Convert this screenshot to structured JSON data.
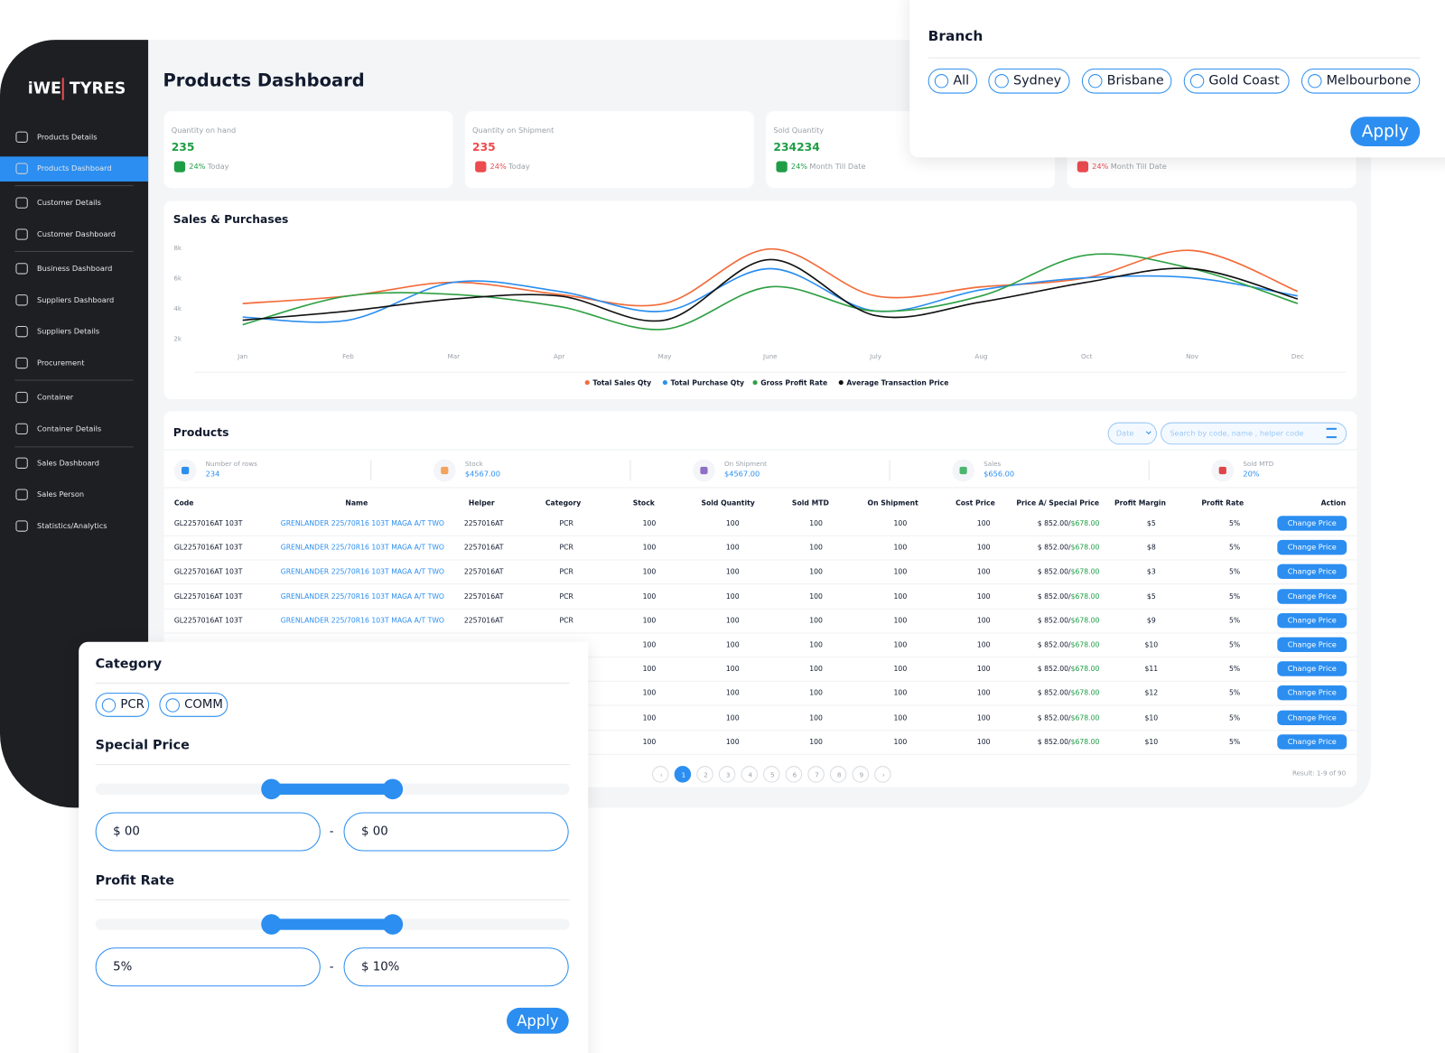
{
  "sidebar": {
    "logo_left": "iWE",
    "logo_right": "TYRES",
    "nav": [
      "Products Details",
      "Products Dashboard",
      "Customer Details",
      "Customer Dashboard",
      "Business Dashboard",
      "Suppliers Dashboard",
      "Suppliers Details",
      "Procurement",
      "Container",
      "Container Details",
      "Sales Dashboard",
      "Sales Person",
      "Statistics/Analytics"
    ]
  },
  "header": {
    "title": "Products Dashboard"
  },
  "cards": [
    {
      "label": "Quantity on hand",
      "value": "235",
      "change": "24%",
      "period": "Today",
      "color": "#1f9d45"
    },
    {
      "label": "Quantity on Shipment",
      "value": "235",
      "change": "24%",
      "period": "Today",
      "color": "#ec4b4f"
    },
    {
      "label": "Sold Quantity",
      "value": "234234",
      "change": "24%",
      "period": "Month Till Date",
      "color": "#1f9d45"
    },
    {
      "change": "24%",
      "period": "Month Till Date",
      "color": "#ec4b4f"
    }
  ],
  "chart_data": {
    "type": "line",
    "title": "Sales & Purchases",
    "categories": [
      "Jan",
      "Feb",
      "Mar",
      "Apr",
      "May",
      "June",
      "July",
      "Aug",
      "Oct",
      "Nov",
      "Dec"
    ],
    "ylim": [
      0,
      8500
    ],
    "yticks": [
      {
        "value": 2000,
        "label": "2k"
      },
      {
        "value": 4000,
        "label": "4k"
      },
      {
        "value": 6000,
        "label": "6k"
      },
      {
        "value": 8000,
        "label": "8k"
      }
    ],
    "series": [
      {
        "name": "Total Sales Qty",
        "color": "#f26b3a",
        "values": [
          4300,
          4800,
          5700,
          4900,
          4300,
          7900,
          4800,
          5400,
          6000,
          7800,
          5100
        ]
      },
      {
        "name": "Total Purchase Qty",
        "color": "#2b8ef0",
        "values": [
          3400,
          3200,
          5700,
          5100,
          3800,
          6600,
          3800,
          5200,
          6000,
          6000,
          4800
        ]
      },
      {
        "name": "Gross Profit Rate",
        "color": "#2ea043",
        "values": [
          2900,
          4800,
          4900,
          4100,
          2600,
          5400,
          3800,
          4800,
          7500,
          6600,
          4300
        ]
      },
      {
        "name": "Average Transaction Price",
        "color": "#111111",
        "values": [
          3200,
          3800,
          4600,
          4800,
          3200,
          7200,
          3500,
          4400,
          5700,
          6600,
          4600
        ]
      }
    ]
  },
  "products": {
    "title": "Products",
    "date_filter": "Date",
    "search_placeholder": "Search by code, name , helper code",
    "summary": [
      {
        "label": "Number of rows",
        "value": "234"
      },
      {
        "label": "Stock",
        "value": "$4567.00"
      },
      {
        "label": "On Shipment",
        "value": "$4567.00"
      },
      {
        "label": "Sales",
        "value": "$656.00"
      },
      {
        "label": "Sold MTD",
        "value": "20%"
      }
    ],
    "columns": [
      "Code",
      "Name",
      "Helper",
      "Category",
      "Stock",
      "Sold Quantity",
      "Sold MTD",
      "On Shipment",
      "Cost Price",
      "Price A/ Special Price",
      "Profit Margin",
      "Profit Rate",
      "Action"
    ],
    "rows": [
      {
        "code": "GL2257016AT 103T",
        "name": "GRENLANDER 225/70R16 103T MAGA A/T TWO",
        "helper": "2257016AT",
        "category": "PCR",
        "stock": "100",
        "sold_qty": "100",
        "sold_mtd": "100",
        "on_shipment": "100",
        "cost": "100",
        "price_a": "$ 852.00/",
        "special_price": "$678.00",
        "margin": "$5",
        "rate": "5%"
      },
      {
        "code": "GL2257016AT 103T",
        "name": "GRENLANDER 225/70R16 103T MAGA A/T TWO",
        "helper": "2257016AT",
        "category": "PCR",
        "stock": "100",
        "sold_qty": "100",
        "sold_mtd": "100",
        "on_shipment": "100",
        "cost": "100",
        "price_a": "$ 852.00/",
        "special_price": "$678.00",
        "margin": "$8",
        "rate": "5%"
      },
      {
        "code": "GL2257016AT 103T",
        "name": "GRENLANDER 225/70R16 103T MAGA A/T TWO",
        "helper": "2257016AT",
        "category": "PCR",
        "stock": "100",
        "sold_qty": "100",
        "sold_mtd": "100",
        "on_shipment": "100",
        "cost": "100",
        "price_a": "$ 852.00/",
        "special_price": "$678.00",
        "margin": "$3",
        "rate": "5%"
      },
      {
        "code": "GL2257016AT 103T",
        "name": "GRENLANDER 225/70R16 103T MAGA A/T TWO",
        "helper": "2257016AT",
        "category": "PCR",
        "stock": "100",
        "sold_qty": "100",
        "sold_mtd": "100",
        "on_shipment": "100",
        "cost": "100",
        "price_a": "$ 852.00/",
        "special_price": "$678.00",
        "margin": "$5",
        "rate": "5%"
      },
      {
        "code": "GL2257016AT 103T",
        "name": "GRENLANDER 225/70R16 103T MAGA A/T TWO",
        "helper": "2257016AT",
        "category": "PCR",
        "stock": "100",
        "sold_qty": "100",
        "sold_mtd": "100",
        "on_shipment": "100",
        "cost": "100",
        "price_a": "$ 852.00/",
        "special_price": "$678.00",
        "margin": "$9",
        "rate": "5%"
      },
      {
        "stock": "100",
        "sold_qty": "100",
        "sold_mtd": "100",
        "on_shipment": "100",
        "cost": "100",
        "price_a": "$ 852.00/",
        "special_price": "$678.00",
        "margin": "$10",
        "rate": "5%"
      },
      {
        "stock": "100",
        "sold_qty": "100",
        "sold_mtd": "100",
        "on_shipment": "100",
        "cost": "100",
        "price_a": "$ 852.00/",
        "special_price": "$678.00",
        "margin": "$11",
        "rate": "5%"
      },
      {
        "stock": "100",
        "sold_qty": "100",
        "sold_mtd": "100",
        "on_shipment": "100",
        "cost": "100",
        "price_a": "$ 852.00/",
        "special_price": "$678.00",
        "margin": "$12",
        "rate": "5%"
      },
      {
        "stock": "100",
        "sold_qty": "100",
        "sold_mtd": "100",
        "on_shipment": "100",
        "cost": "100",
        "price_a": "$ 852.00/",
        "special_price": "$678.00",
        "margin": "$10",
        "rate": "5%"
      },
      {
        "stock": "100",
        "sold_qty": "100",
        "sold_mtd": "100",
        "on_shipment": "100",
        "cost": "100",
        "price_a": "$ 852.00/",
        "special_price": "$678.00",
        "margin": "$10",
        "rate": "5%"
      }
    ],
    "action_label": "Change Price",
    "pagination": {
      "prev": "‹",
      "pages": [
        "1",
        "2",
        "3",
        "4",
        "5",
        "6",
        "7",
        "8",
        "9"
      ],
      "next": "›",
      "result": "Result: 1-9 of 90"
    }
  },
  "branch_filter": {
    "title": "Branch",
    "options": [
      "All",
      "Sydney",
      "Brisbane",
      "Gold Coast",
      "Melbourbone"
    ],
    "apply": "Apply"
  },
  "category_filter": {
    "title": "Category",
    "options": [
      "PCR",
      "COMM"
    ],
    "special_price": {
      "title": "Special Price",
      "min": "$ 00",
      "max": "$ 00"
    },
    "profit_rate": {
      "title": "Profit Rate",
      "min": "5%",
      "max": "$ 10%"
    },
    "separator": "-",
    "apply": "Apply"
  }
}
